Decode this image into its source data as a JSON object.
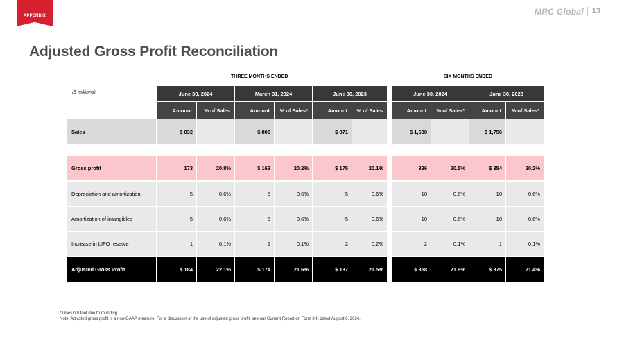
{
  "header": {
    "section_tag": "APPENDIX",
    "brand": "MRC Global",
    "page_number": "13",
    "accent_color": "#d6202f"
  },
  "title": "Adjusted Gross Profit Reconciliation",
  "table": {
    "units_label": "($ millions)",
    "group_headers": [
      {
        "label": "THREE MONTHS ENDED"
      },
      {
        "label": "SIX MONTHS ENDED"
      }
    ],
    "period_headers": [
      "June 30, 2024",
      "March 31, 2024",
      "June 30, 2023",
      "June 30, 2024",
      "June 30, 2023"
    ],
    "sub_headers": [
      "Amount",
      "% of Sales",
      "Amount",
      "% of Sales*",
      "Amount",
      "% of Sales",
      "Amount",
      "% of Sales*",
      "Amount",
      "% of Sales*"
    ],
    "rows": [
      {
        "label": "Sales",
        "cells": [
          "$ 832",
          "",
          "$  806",
          "",
          "$ 871",
          "",
          "$ 1,638",
          "",
          "$ 1,756",
          ""
        ],
        "style": "sales",
        "bold": true
      },
      {
        "label": "Gross profit",
        "cells": [
          "173",
          "20.8%",
          "$ 163",
          "20.2%",
          "$ 175",
          "20.1%",
          "336",
          "20.5%",
          "$ 354",
          "20.2%"
        ],
        "style": "pink",
        "bold": true
      },
      {
        "label": "Depreciation  and  amortization",
        "cells": [
          "5",
          "0.6%",
          "5",
          "0.6%",
          "5",
          "0.6%",
          "10",
          "0.6%",
          "10",
          "0.6%"
        ],
        "style": "gray",
        "bold": false
      },
      {
        "label": "Amortization  of  intangibles",
        "cells": [
          "5",
          "0.6%",
          "5",
          "0.6%",
          "5",
          "0.6%",
          "10",
          "0.6%",
          "10",
          "0.6%"
        ],
        "style": "gray",
        "bold": false
      },
      {
        "label": "Increase  in  LIFO reserve",
        "cells": [
          "1",
          "0.1%",
          "1",
          "0.1%",
          "2",
          "0.2%",
          "2",
          "0.1%",
          "1",
          "0.1%"
        ],
        "style": "gray",
        "bold": false
      },
      {
        "label": "Adjusted Gross Profit",
        "cells": [
          "$ 184",
          "22.1%",
          "$ 174",
          "21.6%",
          "$ 187",
          "21.5%",
          "$ 358",
          "21.9%",
          "$ 375",
          "21.4%"
        ],
        "style": "black",
        "bold": true
      }
    ],
    "colors": {
      "header_dark": "#383838",
      "pink": "#fcc7cc",
      "light_gray": "#e9e9e9",
      "mid_gray": "#d9d9d9",
      "black": "#000000"
    }
  },
  "footnotes": [
    "* Does not foot due to rounding.",
    "Note: Adjusted gross profit is a non-GAAP measure. For a discussion of the use of adjusted gross profit, see our Current Report on Form 8-K dated August 6, 2024."
  ]
}
